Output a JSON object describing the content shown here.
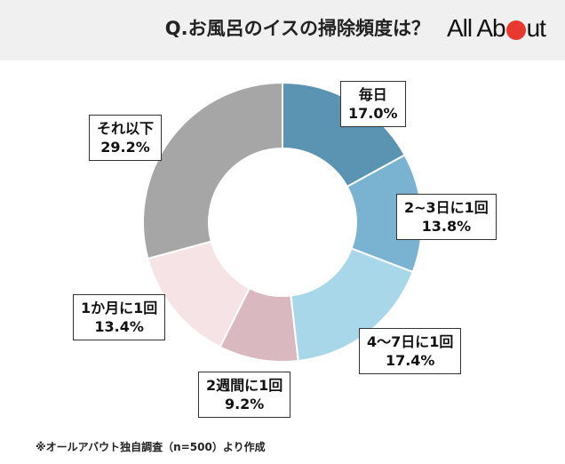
{
  "header": {
    "title": "Q.お風呂のイスの掃除頻度は？",
    "brand_left": "All Ab",
    "brand_right": "ut",
    "brand_dot_color": "#e8382f"
  },
  "chart_data": {
    "type": "pie",
    "categories": [
      "毎日",
      "2~3日に1回",
      "4〜7日に1回",
      "2週間に1回",
      "1か月に1回",
      "それ以下"
    ],
    "values": [
      17.0,
      13.8,
      17.4,
      9.2,
      13.4,
      29.2
    ],
    "value_labels": [
      "17.0%",
      "13.8%",
      "17.4%",
      "9.2%",
      "13.4%",
      "29.2%"
    ],
    "colors": [
      "#5b93b2",
      "#79b3d1",
      "#a9d7ea",
      "#d9b8bf",
      "#f5e3e6",
      "#a6a6a6"
    ],
    "donut": true,
    "start": "12 o'clock, clockwise"
  },
  "footnote": "※オールアバウト独自調査（n=500）より作成"
}
